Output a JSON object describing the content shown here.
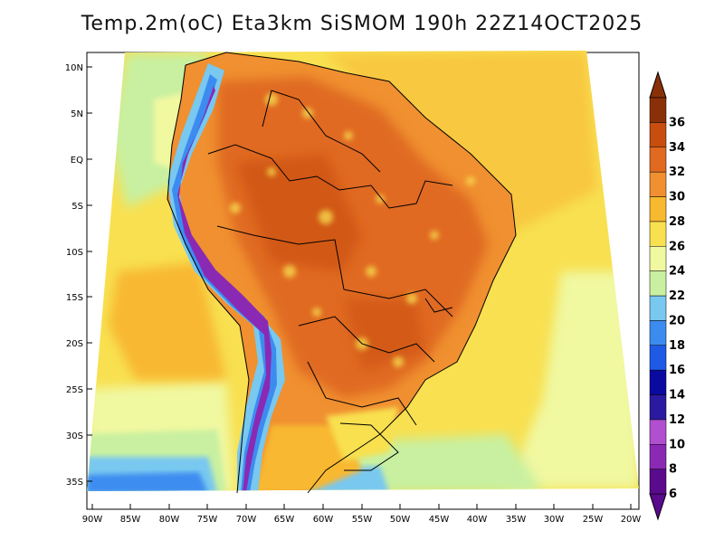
{
  "title": "Temp.2m(oC) Eta3km SiSMOM 190h 22Z14OCT2025",
  "map": {
    "lat_labels": [
      "10N",
      "5N",
      "EQ",
      "5S",
      "10S",
      "15S",
      "20S",
      "25S",
      "30S",
      "35S"
    ],
    "lon_labels": [
      "90W",
      "85W",
      "80W",
      "75W",
      "70W",
      "65W",
      "60W",
      "55W",
      "50W",
      "45W",
      "40W",
      "35W",
      "30W",
      "25W",
      "20W"
    ]
  },
  "colorbar": {
    "min_label": "6",
    "labels": [
      "6",
      "8",
      "10",
      "12",
      "14",
      "16",
      "18",
      "20",
      "22",
      "24",
      "26",
      "28",
      "30",
      "32",
      "34",
      "36"
    ],
    "colors": [
      "#5a0a8c",
      "#8a2ab4",
      "#b04fd0",
      "#2a1aa0",
      "#0a0aa0",
      "#1e5ae6",
      "#3c8cf0",
      "#78c8f0",
      "#c8f0a0",
      "#f0f8a0",
      "#f8e050",
      "#f8b830",
      "#f09030",
      "#e06a20",
      "#c84e10",
      "#8a3008"
    ]
  }
}
